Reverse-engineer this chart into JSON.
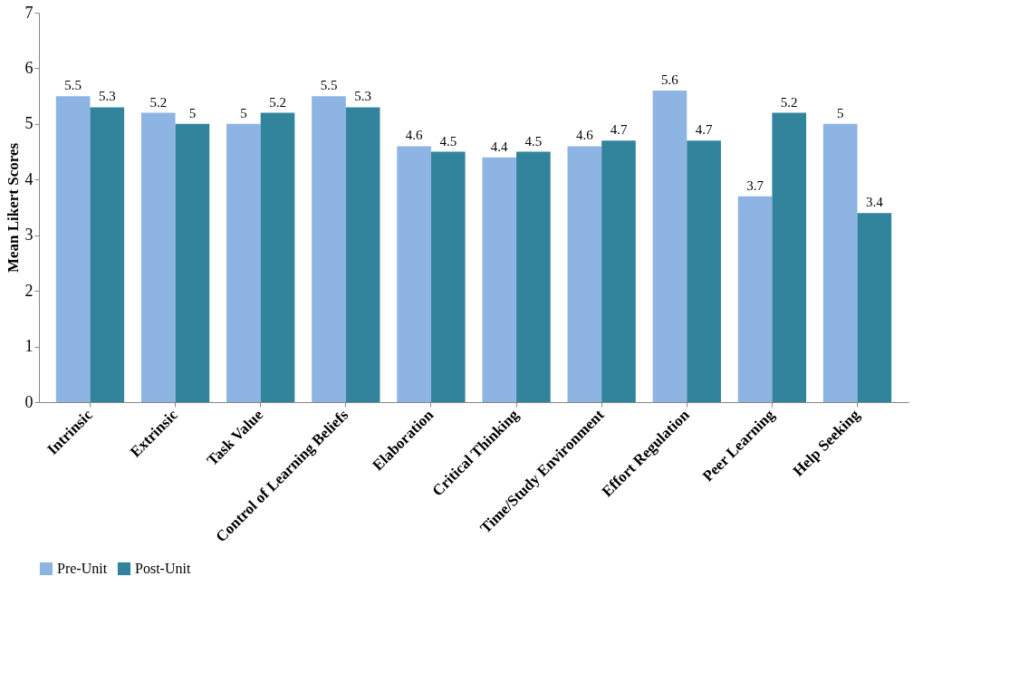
{
  "chart_data": {
    "type": "bar",
    "ylabel": "Mean Likert Scores",
    "categories": [
      "Intrinsic",
      "Extrinsic",
      "Task Value",
      "Control of Learning Beliefs",
      "Elaboration",
      "Critical Thinking",
      "Time/Study Environment",
      "Effort Regulation",
      "Peer Learning",
      "Help Seeking"
    ],
    "series": [
      {
        "name": "Pre-Unit",
        "color": "#8eb4e3",
        "values": [
          5.5,
          5.2,
          5,
          5.5,
          4.6,
          4.4,
          4.6,
          5.6,
          3.7,
          5
        ]
      },
      {
        "name": "Post-Unit",
        "color": "#31849b",
        "values": [
          5.3,
          5,
          5.2,
          5.3,
          4.5,
          4.5,
          4.7,
          4.7,
          5.2,
          3.4
        ]
      }
    ],
    "ylim": [
      0,
      7
    ],
    "yticks": [
      0,
      1,
      2,
      3,
      4,
      5,
      6,
      7
    ],
    "grid": false,
    "legend": "bottom",
    "data_labels": true
  }
}
